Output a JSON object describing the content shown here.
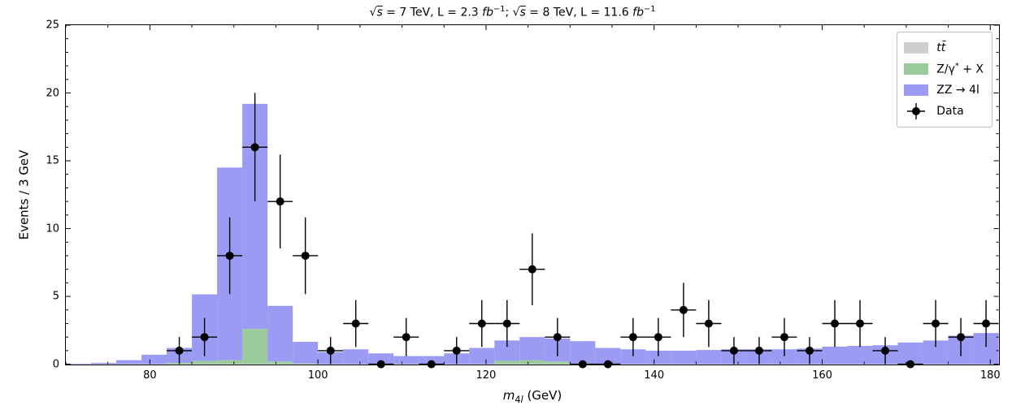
{
  "chart": {
    "type": "stacked-histogram-with-errorbars",
    "title_html": "√<span style='text-decoration:overline'><span class='ital'>s</span></span> = 7 TeV, L = 2.3 <span class='ital'>fb</span><sup>−1</sup>; √<span style='text-decoration:overline'><span class='ital'>s</span></span> = 8 TeV, L = 11.6 <span class='ital'>fb</span><sup>−1</sup>",
    "xlabel_html": "<span class='ital'>m</span><sub>4<span class='ital'>l</span></sub> (GeV)",
    "ylabel": "Events / 3 GeV",
    "xlim": [
      70,
      181
    ],
    "ylim": [
      0,
      25
    ],
    "x_major_ticks": [
      80,
      100,
      120,
      140,
      160,
      180
    ],
    "x_minor_step": 5,
    "y_major_ticks": [
      0,
      5,
      10,
      15,
      20,
      25
    ],
    "y_minor_step": 1,
    "tick_len_major": 6,
    "tick_len_minor": 3,
    "bin_width": 3,
    "bin_edges_start": 70,
    "n_bins": 37,
    "background_color": "#ffffff",
    "axis_color": "#000000",
    "stacks": [
      {
        "name": "ttbar",
        "label_html": "<span class='ital'>tt̄</span>",
        "color": "#bfbfbf",
        "alpha": 0.75,
        "values": [
          0,
          0,
          0,
          0,
          0,
          0,
          0,
          0,
          0,
          0,
          0,
          0,
          0,
          0,
          0,
          0,
          0,
          0,
          0,
          0,
          0,
          0,
          0,
          0,
          0,
          0,
          0,
          0,
          0,
          0,
          0,
          0,
          0,
          0,
          0,
          0,
          0
        ]
      },
      {
        "name": "dy",
        "label_html": "Z/γ<sup>*</sup> + X",
        "color": "#79b97c",
        "alpha": 0.75,
        "values": [
          0,
          0,
          0,
          0,
          0.1,
          0.25,
          0.3,
          2.6,
          0.2,
          0.05,
          0,
          0,
          0,
          0,
          0,
          0,
          0,
          0.25,
          0.3,
          0.2,
          0.05,
          0,
          0,
          0,
          0,
          0,
          0,
          0,
          0,
          0,
          0,
          0,
          0,
          0,
          0,
          0,
          0
        ]
      },
      {
        "name": "zz4l",
        "label_html": "ZZ → 4l",
        "color": "#7a7af0",
        "alpha": 0.75,
        "values": [
          0.05,
          0.1,
          0.3,
          0.7,
          1.1,
          4.9,
          14.2,
          16.6,
          4.1,
          1.6,
          0.9,
          1.1,
          0.8,
          0.6,
          0.6,
          0.8,
          1.2,
          1.5,
          1.7,
          1.7,
          1.65,
          1.2,
          1.1,
          1.0,
          1.0,
          1.05,
          1.1,
          1.1,
          1.1,
          1.15,
          1.3,
          1.35,
          1.4,
          1.6,
          1.75,
          2.1,
          2.3
        ]
      }
    ],
    "data_points": {
      "marker_color": "#000000",
      "marker_size": 5,
      "cap_width": 0,
      "line_width": 1.4,
      "x_err": 1.5,
      "points": [
        {
          "x": 83.5,
          "y": 1,
          "yerr": 1.0
        },
        {
          "x": 86.5,
          "y": 2,
          "yerr": 1.41
        },
        {
          "x": 89.5,
          "y": 8,
          "yerr": 2.83
        },
        {
          "x": 92.5,
          "y": 16,
          "yerr": 4.0
        },
        {
          "x": 95.5,
          "y": 12,
          "yerr": 3.46
        },
        {
          "x": 98.5,
          "y": 8,
          "yerr": 2.83
        },
        {
          "x": 101.5,
          "y": 1,
          "yerr": 1.0
        },
        {
          "x": 104.5,
          "y": 3,
          "yerr": 1.73
        },
        {
          "x": 107.5,
          "y": 0,
          "yerr": 0
        },
        {
          "x": 110.5,
          "y": 2,
          "yerr": 1.41
        },
        {
          "x": 113.5,
          "y": 0,
          "yerr": 0
        },
        {
          "x": 116.5,
          "y": 1,
          "yerr": 1.0
        },
        {
          "x": 119.5,
          "y": 3,
          "yerr": 1.73
        },
        {
          "x": 122.5,
          "y": 3,
          "yerr": 1.73
        },
        {
          "x": 125.5,
          "y": 7,
          "yerr": 2.65
        },
        {
          "x": 128.5,
          "y": 2,
          "yerr": 1.41
        },
        {
          "x": 131.5,
          "y": 0,
          "yerr": 0
        },
        {
          "x": 134.5,
          "y": 0,
          "yerr": 0
        },
        {
          "x": 137.5,
          "y": 2,
          "yerr": 1.41
        },
        {
          "x": 140.5,
          "y": 2,
          "yerr": 1.41
        },
        {
          "x": 143.5,
          "y": 4,
          "yerr": 2.0
        },
        {
          "x": 146.5,
          "y": 3,
          "yerr": 1.73
        },
        {
          "x": 149.5,
          "y": 1,
          "yerr": 1.0
        },
        {
          "x": 152.5,
          "y": 1,
          "yerr": 1.0
        },
        {
          "x": 155.5,
          "y": 2,
          "yerr": 1.41
        },
        {
          "x": 158.5,
          "y": 1,
          "yerr": 1.0
        },
        {
          "x": 161.5,
          "y": 3,
          "yerr": 1.73
        },
        {
          "x": 164.5,
          "y": 3,
          "yerr": 1.73
        },
        {
          "x": 167.5,
          "y": 1,
          "yerr": 1.0
        },
        {
          "x": 170.5,
          "y": 0,
          "yerr": 0
        },
        {
          "x": 173.5,
          "y": 3,
          "yerr": 1.73
        },
        {
          "x": 176.5,
          "y": 2,
          "yerr": 1.41
        },
        {
          "x": 179.5,
          "y": 3,
          "yerr": 1.73
        }
      ]
    },
    "legend": {
      "position": "upper-right",
      "border_color": "#bfbfbf",
      "entries": [
        {
          "type": "patch",
          "ref": "ttbar"
        },
        {
          "type": "patch",
          "ref": "dy"
        },
        {
          "type": "patch",
          "ref": "zz4l"
        },
        {
          "type": "marker",
          "label": "Data"
        }
      ]
    }
  }
}
